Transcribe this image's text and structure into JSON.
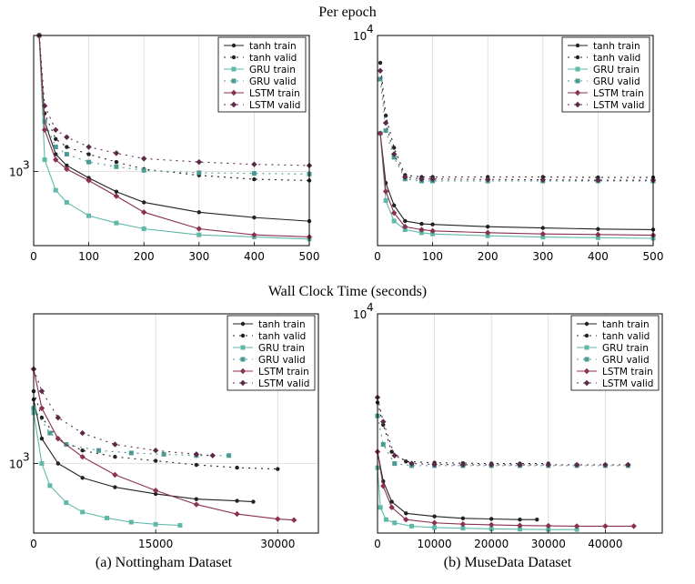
{
  "titles": {
    "top": "Per epoch",
    "bottom": "Wall Clock Time (seconds)"
  },
  "captions": {
    "left": "(a) Nottingham Dataset",
    "right": "(b) MuseData Dataset"
  },
  "series_styles": [
    {
      "name": "tanh train",
      "color": "#222222",
      "dash": "",
      "marker": "dot"
    },
    {
      "name": "tanh valid",
      "color": "#222222",
      "dash": "2 5",
      "marker": "dot"
    },
    {
      "name": "GRU train",
      "color": "#5fb8a8",
      "dash": "",
      "marker": "square"
    },
    {
      "name": "GRU valid",
      "color": "#4a9a94",
      "dash": "2 5",
      "marker": "square"
    },
    {
      "name": "LSTM train",
      "color": "#8a3050",
      "dash": "",
      "marker": "diamond"
    },
    {
      "name": "LSTM valid",
      "color": "#5a2a48",
      "dash": "2 5",
      "marker": "diamond"
    }
  ],
  "chart_data": [
    {
      "type": "line",
      "y_scale": "log",
      "xlim": [
        0,
        500
      ],
      "ylim": [
        550,
        3000
      ],
      "xticks": [
        0,
        100,
        200,
        300,
        400,
        500
      ],
      "ytick_labels": [
        {
          "label": "10",
          "exp": "3",
          "value": 1000
        }
      ],
      "legend": "top-right",
      "grid": true,
      "series": [
        {
          "name": "tanh train",
          "x": [
            10,
            20,
            40,
            60,
            100,
            150,
            200,
            300,
            400,
            500
          ],
          "y": [
            3000,
            1500,
            1150,
            1050,
            950,
            850,
            780,
            720,
            690,
            670
          ]
        },
        {
          "name": "tanh valid",
          "x": [
            10,
            20,
            40,
            60,
            100,
            150,
            200,
            300,
            400,
            500
          ],
          "y": [
            3000,
            1600,
            1300,
            1220,
            1150,
            1080,
            1020,
            970,
            940,
            930
          ]
        },
        {
          "name": "GRU train",
          "x": [
            10,
            20,
            40,
            60,
            100,
            150,
            200,
            300,
            400,
            500
          ],
          "y": [
            3000,
            1100,
            860,
            780,
            700,
            660,
            630,
            600,
            590,
            580
          ]
        },
        {
          "name": "GRU valid",
          "x": [
            10,
            20,
            40,
            60,
            100,
            150,
            200,
            300,
            400,
            500
          ],
          "y": [
            3000,
            1500,
            1220,
            1150,
            1080,
            1040,
            1010,
            990,
            985,
            980
          ]
        },
        {
          "name": "LSTM train",
          "x": [
            10,
            20,
            40,
            60,
            100,
            150,
            200,
            300,
            400,
            500
          ],
          "y": [
            3000,
            1400,
            1100,
            1020,
            930,
            820,
            720,
            630,
            600,
            590
          ]
        },
        {
          "name": "LSTM valid",
          "x": [
            10,
            20,
            40,
            60,
            100,
            150,
            200,
            300,
            400,
            500
          ],
          "y": [
            3000,
            1700,
            1400,
            1320,
            1220,
            1160,
            1110,
            1080,
            1060,
            1050
          ]
        }
      ]
    },
    {
      "type": "line",
      "y_scale": "log",
      "xlim": [
        0,
        500
      ],
      "ylim": [
        1800,
        10000
      ],
      "xticks": [
        0,
        100,
        200,
        300,
        400,
        500
      ],
      "ytick_labels": [
        {
          "label": "10",
          "exp": "4",
          "value": 10000
        }
      ],
      "legend": "top-right",
      "grid": true,
      "series": [
        {
          "name": "tanh train",
          "x": [
            5,
            15,
            30,
            50,
            80,
            100,
            200,
            300,
            400,
            500
          ],
          "y": [
            4500,
            3000,
            2500,
            2200,
            2150,
            2140,
            2100,
            2080,
            2060,
            2050
          ]
        },
        {
          "name": "tanh valid",
          "x": [
            5,
            15,
            30,
            50,
            80,
            100,
            200,
            300,
            400,
            500
          ],
          "y": [
            8000,
            5200,
            4000,
            3200,
            3150,
            3150,
            3150,
            3150,
            3140,
            3140
          ]
        },
        {
          "name": "GRU train",
          "x": [
            5,
            15,
            30,
            50,
            80,
            100,
            200,
            300,
            400,
            500
          ],
          "y": [
            4500,
            2600,
            2200,
            2050,
            2000,
            1980,
            1950,
            1930,
            1920,
            1910
          ]
        },
        {
          "name": "GRU valid",
          "x": [
            5,
            15,
            30,
            50,
            80,
            100,
            200,
            300,
            400,
            500
          ],
          "y": [
            7000,
            4600,
            3700,
            3100,
            3050,
            3050,
            3050,
            3050,
            3050,
            3050
          ]
        },
        {
          "name": "LSTM train",
          "x": [
            5,
            15,
            30,
            50,
            80,
            100,
            200,
            300,
            400,
            500
          ],
          "y": [
            4500,
            2800,
            2350,
            2100,
            2050,
            2030,
            2000,
            1980,
            1970,
            1960
          ]
        },
        {
          "name": "LSTM valid",
          "x": [
            5,
            15,
            30,
            50,
            80,
            100,
            200,
            300,
            400,
            500
          ],
          "y": [
            7500,
            4900,
            3800,
            3150,
            3100,
            3100,
            3090,
            3080,
            3070,
            3070
          ]
        }
      ]
    },
    {
      "type": "line",
      "y_scale": "log",
      "xlim": [
        0,
        35000
      ],
      "ylim": [
        600,
        3000
      ],
      "xticks": [
        0,
        15000,
        30000
      ],
      "ytick_labels": [
        {
          "label": "10",
          "exp": "3",
          "value": 1000
        }
      ],
      "legend": "top-right",
      "grid": true,
      "series": [
        {
          "name": "tanh train",
          "x": [
            0,
            1000,
            3000,
            6000,
            10000,
            15000,
            20000,
            25000,
            27000
          ],
          "y": [
            1600,
            1200,
            1000,
            900,
            840,
            800,
            770,
            760,
            755
          ]
        },
        {
          "name": "tanh valid",
          "x": [
            0,
            1000,
            3000,
            6000,
            10000,
            15000,
            20000,
            25000,
            30000
          ],
          "y": [
            1700,
            1400,
            1200,
            1100,
            1050,
            1020,
            990,
            970,
            960
          ]
        },
        {
          "name": "GRU train",
          "x": [
            0,
            1000,
            2000,
            4000,
            6000,
            9000,
            12000,
            15000,
            18000
          ],
          "y": [
            1450,
            1000,
            850,
            750,
            700,
            670,
            650,
            640,
            635
          ]
        },
        {
          "name": "GRU valid",
          "x": [
            0,
            2000,
            4000,
            8000,
            12000,
            16000,
            20000,
            24000
          ],
          "y": [
            1500,
            1250,
            1150,
            1100,
            1080,
            1070,
            1060,
            1060
          ]
        },
        {
          "name": "LSTM train",
          "x": [
            0,
            1000,
            3000,
            6000,
            10000,
            15000,
            20000,
            25000,
            30000,
            32000
          ],
          "y": [
            2000,
            1500,
            1200,
            1050,
            920,
            820,
            740,
            690,
            665,
            660
          ]
        },
        {
          "name": "LSTM valid",
          "x": [
            0,
            1000,
            3000,
            6000,
            10000,
            15000,
            20000,
            22000
          ],
          "y": [
            2000,
            1700,
            1400,
            1250,
            1150,
            1100,
            1070,
            1060
          ]
        }
      ]
    },
    {
      "type": "line",
      "y_scale": "log",
      "xlim": [
        0,
        50000
      ],
      "ylim": [
        1800,
        10000
      ],
      "xticks": [
        0,
        10000,
        20000,
        30000,
        40000
      ],
      "ytick_labels": [
        {
          "label": "10",
          "exp": "4",
          "value": 10000
        }
      ],
      "legend": "top-right",
      "grid": true,
      "series": [
        {
          "name": "tanh train",
          "x": [
            0,
            1000,
            2500,
            5000,
            10000,
            15000,
            20000,
            25000,
            28000
          ],
          "y": [
            3400,
            2700,
            2300,
            2100,
            2050,
            2020,
            2010,
            2000,
            2000
          ]
        },
        {
          "name": "tanh valid",
          "x": [
            0,
            1000,
            2500,
            5000,
            10000,
            15000,
            20000,
            25000,
            30000
          ],
          "y": [
            5000,
            4200,
            3400,
            3150,
            3120,
            3110,
            3100,
            3100,
            3100
          ]
        },
        {
          "name": "GRU train",
          "x": [
            0,
            500,
            1500,
            3000,
            6000,
            10000,
            15000,
            20000,
            25000,
            30000,
            35000
          ],
          "y": [
            3000,
            2200,
            2000,
            1950,
            1900,
            1880,
            1870,
            1860,
            1855,
            1850,
            1850
          ]
        },
        {
          "name": "GRU valid",
          "x": [
            0,
            1000,
            3000,
            6000,
            10000,
            15000,
            20000,
            25000,
            30000,
            35000,
            40000,
            44000
          ],
          "y": [
            4500,
            3600,
            3100,
            3050,
            3050,
            3050,
            3050,
            3050,
            3050,
            3050,
            3050,
            3050
          ]
        },
        {
          "name": "LSTM train",
          "x": [
            0,
            1000,
            2500,
            5000,
            10000,
            15000,
            20000,
            25000,
            30000,
            35000,
            40000,
            45000
          ],
          "y": [
            3400,
            2600,
            2200,
            2000,
            1950,
            1930,
            1920,
            1910,
            1905,
            1900,
            1900,
            1900
          ]
        },
        {
          "name": "LSTM valid",
          "x": [
            0,
            1000,
            3000,
            6000,
            10000,
            15000,
            20000,
            25000,
            30000,
            35000,
            40000,
            44000
          ],
          "y": [
            5200,
            4300,
            3300,
            3100,
            3080,
            3070,
            3070,
            3070,
            3070,
            3070,
            3070,
            3070
          ]
        }
      ]
    }
  ]
}
